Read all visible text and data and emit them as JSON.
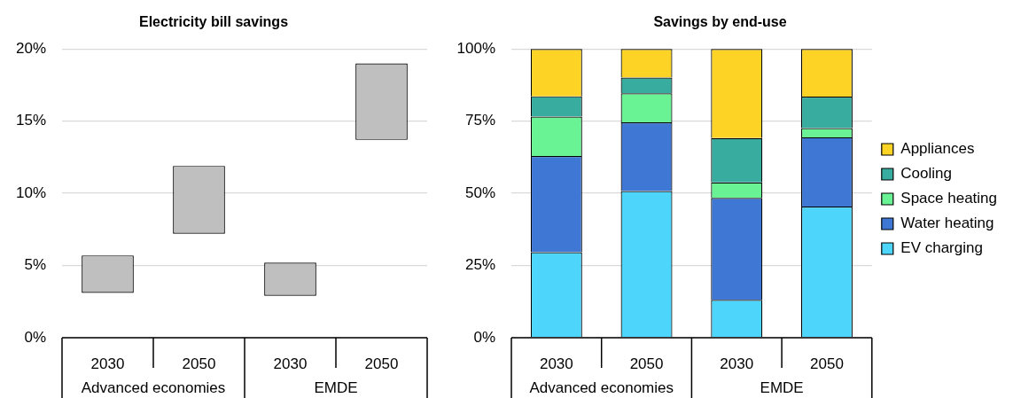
{
  "chart_data": [
    {
      "type": "bar",
      "title": "Electricity bill savings",
      "categories": [
        "2030",
        "2050",
        "2030",
        "2050"
      ],
      "annotations": [
        "Advanced economies",
        "EMDE"
      ],
      "values": [
        2.6,
        4.7,
        2.3,
        5.3
      ],
      "base": [
        3.1,
        7.2,
        2.9,
        13.7
      ],
      "color": "#bfbfbf",
      "ylim": [
        0,
        20
      ],
      "yticks": [
        {
          "value": 0,
          "label": "0%"
        },
        {
          "value": 5,
          "label": "5%"
        },
        {
          "value": 10,
          "label": "10%"
        },
        {
          "value": 15,
          "label": "15%"
        },
        {
          "value": 20,
          "label": "20%"
        }
      ],
      "grid": "y",
      "legend": false
    },
    {
      "type": "bar",
      "title": "Savings by end-use",
      "categories": [
        "2030",
        "2050",
        "2030",
        "2050"
      ],
      "annotations": [
        "Advanced economies",
        "EMDE"
      ],
      "stacked": true,
      "series": [
        {
          "name": "EV charging",
          "color": "#4dd5fb",
          "values": [
            29.6,
            50.8,
            13.1,
            45.4
          ]
        },
        {
          "name": "Water heating",
          "color": "#3f78d4",
          "values": [
            33.3,
            23.8,
            35.3,
            24.0
          ]
        },
        {
          "name": "Space heating",
          "color": "#6af394",
          "values": [
            13.7,
            10.0,
            5.4,
            3.2
          ]
        },
        {
          "name": "Cooling",
          "color": "#38ad9f",
          "values": [
            7.0,
            5.5,
            15.3,
            10.9
          ]
        },
        {
          "name": "Appliances",
          "color": "#fdd425",
          "values": [
            16.4,
            9.9,
            30.9,
            16.5
          ]
        }
      ],
      "ylim": [
        0,
        100
      ],
      "yticks": [
        {
          "value": 0,
          "label": "0%"
        },
        {
          "value": 25,
          "label": "25%"
        },
        {
          "value": 50,
          "label": "50%"
        },
        {
          "value": 75,
          "label": "75%"
        },
        {
          "value": 100,
          "label": "100%"
        }
      ],
      "grid": "y",
      "legend": "right"
    }
  ]
}
